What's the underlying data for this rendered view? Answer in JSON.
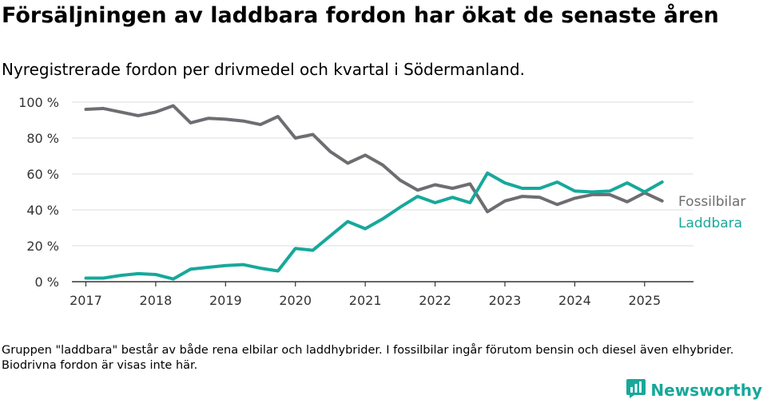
{
  "title": "Försäljningen av laddbara fordon har ökat de senaste åren",
  "subtitle": "Nyregistrerade fordon per drivmedel och kvartal i Södermanland.",
  "footnote": "Gruppen \"laddbara\" består av både rena elbilar och laddhybrider. I fossilbilar ingår förutom bensin och diesel även elhybrider. Biodrivna fordon är visas inte här.",
  "brand": {
    "name": "Newsworthy",
    "icon": "bar-chart-logo-icon",
    "color": "#17a89b"
  },
  "chart_data": {
    "type": "line",
    "x_ticks": [
      2017,
      2018,
      2019,
      2020,
      2021,
      2022,
      2023,
      2024,
      2025
    ],
    "y_ticks": [
      "0 %",
      "20 %",
      "40 %",
      "60 %",
      "80 %",
      "100 %"
    ],
    "y_tick_values": [
      0,
      20,
      40,
      60,
      80,
      100
    ],
    "xlim": [
      2016.8,
      2025.7
    ],
    "ylim": [
      0,
      100
    ],
    "grid": "horizontal",
    "legend": "inline labels at line ends",
    "x": [
      2017.0,
      2017.25,
      2017.5,
      2017.75,
      2018.0,
      2018.25,
      2018.5,
      2018.75,
      2019.0,
      2019.25,
      2019.5,
      2019.75,
      2020.0,
      2020.25,
      2020.5,
      2020.75,
      2021.0,
      2021.25,
      2021.5,
      2021.75,
      2022.0,
      2022.25,
      2022.5,
      2022.75,
      2023.0,
      2023.25,
      2023.5,
      2023.75,
      2024.0,
      2024.25,
      2024.5,
      2024.75,
      2025.0,
      2025.25
    ],
    "series": [
      {
        "name": "Fossilbilar",
        "color": "#6d6d72",
        "values": [
          96,
          96.5,
          94.5,
          92.5,
          94.5,
          98,
          88.5,
          91,
          90.5,
          89.5,
          87.5,
          92,
          80,
          82,
          72.5,
          66,
          70.5,
          65,
          56.5,
          51,
          54,
          52,
          54.5,
          39,
          45,
          47.5,
          47,
          43,
          46.5,
          48.5,
          48.5,
          44.5,
          49.5,
          45
        ]
      },
      {
        "name": "Laddbara",
        "color": "#17a89b",
        "values": [
          2,
          2,
          3.5,
          4.5,
          4,
          1.5,
          7,
          8,
          9,
          9.5,
          7.5,
          6,
          18.5,
          17.5,
          25.5,
          33.5,
          29.5,
          35,
          41.5,
          47.5,
          44,
          47,
          44,
          60.5,
          55,
          52,
          52,
          55.5,
          50.5,
          50,
          50.5,
          55,
          50,
          55.5
        ]
      }
    ]
  }
}
